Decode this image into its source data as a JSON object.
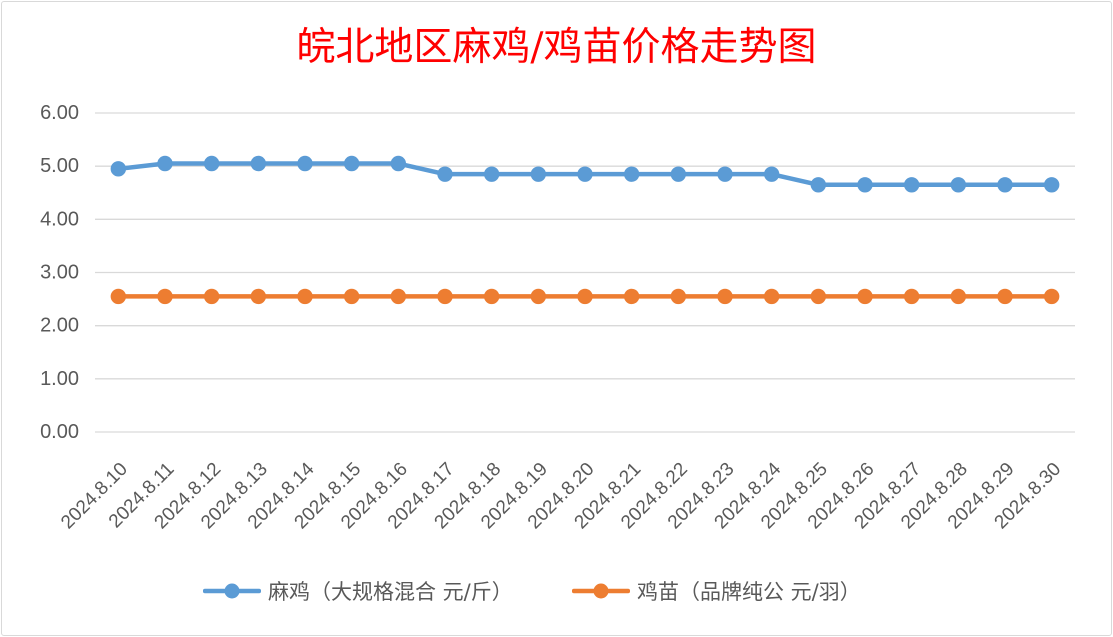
{
  "colors": {
    "title": "#FF0000",
    "grid": "#D9D9D9",
    "axis_text": "#595959"
  },
  "chart_data": {
    "type": "line",
    "title": "皖北地区麻鸡/鸡苗价格走势图",
    "categories": [
      "2024.8.10",
      "2024.8.11",
      "2024.8.12",
      "2024.8.13",
      "2024.8.14",
      "2024.8.15",
      "2024.8.16",
      "2024.8.17",
      "2024.8.18",
      "2024.8.19",
      "2024.8.20",
      "2024.8.21",
      "2024.8.22",
      "2024.8.23",
      "2024.8.24",
      "2024.8.25",
      "2024.8.26",
      "2024.8.27",
      "2024.8.28",
      "2024.8.29",
      "2024.8.30"
    ],
    "series": [
      {
        "name": "麻鸡（大规格混合 元/斤）",
        "color": "#5B9BD5",
        "values": [
          4.95,
          5.05,
          5.05,
          5.05,
          5.05,
          5.05,
          5.05,
          4.85,
          4.85,
          4.85,
          4.85,
          4.85,
          4.85,
          4.85,
          4.85,
          4.65,
          4.65,
          4.65,
          4.65,
          4.65,
          4.65
        ]
      },
      {
        "name": "鸡苗（品牌纯公 元/羽）",
        "color": "#ED7D31",
        "values": [
          2.55,
          2.55,
          2.55,
          2.55,
          2.55,
          2.55,
          2.55,
          2.55,
          2.55,
          2.55,
          2.55,
          2.55,
          2.55,
          2.55,
          2.55,
          2.55,
          2.55,
          2.55,
          2.55,
          2.55,
          2.55
        ]
      }
    ],
    "ylim": [
      0,
      6
    ],
    "yticks": [
      "0.00",
      "1.00",
      "2.00",
      "3.00",
      "4.00",
      "5.00",
      "6.00"
    ],
    "grid": true,
    "legend": "bottom"
  }
}
